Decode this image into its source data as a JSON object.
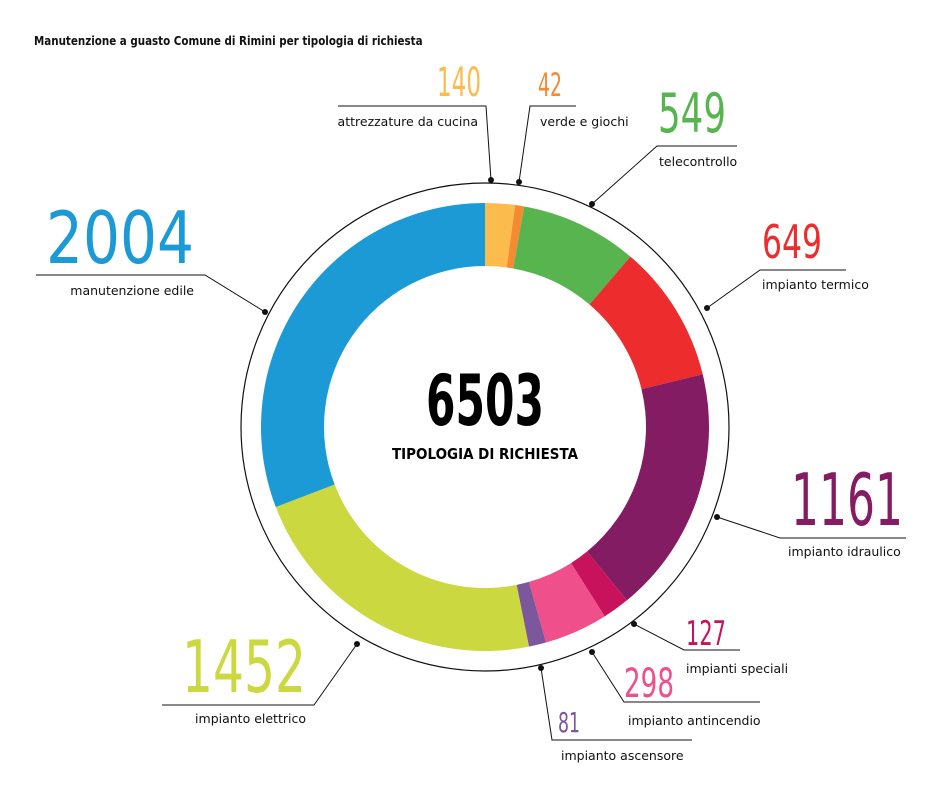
{
  "title": "Manutenzione a guasto Comune di Rimini per tipologia di richiesta",
  "chart_data": {
    "type": "pie",
    "title": "Manutenzione a guasto Comune di Rimini per tipologia di richiesta",
    "total": "6503",
    "total_label": "TIPOLOGIA DI RICHIESTA",
    "slices": [
      {
        "label": "attrezzature da cucina",
        "value": 140,
        "color": "#fbbc4d"
      },
      {
        "label": "verde e giochi",
        "value": 42,
        "color": "#f58a31"
      },
      {
        "label": "telecontrollo",
        "value": 549,
        "color": "#57b44f"
      },
      {
        "label": "impianto termico",
        "value": 649,
        "color": "#ec2c2d"
      },
      {
        "label": "impianto idraulico",
        "value": 1161,
        "color": "#841c63"
      },
      {
        "label": "impianti speciali",
        "value": 127,
        "color": "#c8125b"
      },
      {
        "label": "impianto antincendio",
        "value": 298,
        "color": "#ef4f8b"
      },
      {
        "label": "impianto ascensore",
        "value": 81,
        "color": "#7b579c"
      },
      {
        "label": "impianto elettrico",
        "value": 1452,
        "color": "#cbd83f"
      },
      {
        "label": "manutenzione edile",
        "value": 2004,
        "color": "#1b9ad6"
      }
    ]
  }
}
